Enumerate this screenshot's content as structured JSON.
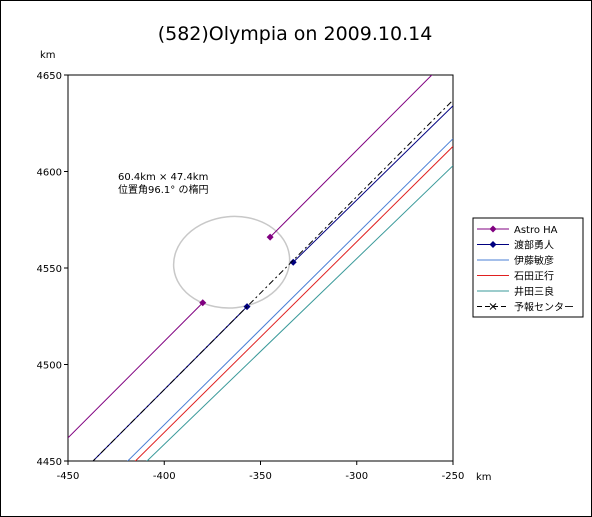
{
  "chart_data": {
    "type": "line",
    "title": "(582)Olympia on 2009.10.14",
    "xlabel": "km",
    "ylabel": "km",
    "xlim": [
      -450,
      -250
    ],
    "ylim": [
      4450,
      4650
    ],
    "x_ticks": [
      "-450",
      "-400",
      "-350",
      "-300",
      "-250"
    ],
    "y_ticks": [
      "4450",
      "4500",
      "4550",
      "4600",
      "4650"
    ],
    "grid": false,
    "legend_position": "right",
    "annotation": {
      "lines": [
        "60.4km × 47.4km",
        "位置角96.1° の楕円"
      ]
    },
    "ellipse": {
      "center": [
        -365,
        4553
      ],
      "major_axis_km": 60.4,
      "minor_axis_km": 47.4,
      "position_angle_deg": 96.1,
      "color": "#c8c8c8"
    },
    "series": [
      {
        "name": "Astro HA",
        "color": "#800080",
        "marker": "diamond",
        "segments": [
          [
            [
              -452,
              4460
            ],
            [
              -380,
              4532
            ]
          ],
          [
            [
              -345,
              4566
            ],
            [
              -258,
              4653
            ]
          ]
        ],
        "points": [
          [
            -380,
            4532
          ],
          [
            -345,
            4566
          ]
        ]
      },
      {
        "name": "渡部勇人",
        "color": "#000080",
        "marker": "diamond",
        "segments": [
          [
            [
              -438,
              4449
            ],
            [
              -357,
              4530
            ]
          ],
          [
            [
              -333,
              4553
            ],
            [
              -248,
              4636
            ]
          ]
        ],
        "points": [
          [
            -357,
            4530
          ],
          [
            -333,
            4553
          ]
        ]
      },
      {
        "name": "伊藤敏彦",
        "color": "#4a7fd6",
        "marker": "none",
        "segments": [
          [
            [
              -420,
              4449
            ],
            [
              -250,
              4617
            ]
          ]
        ],
        "points": []
      },
      {
        "name": "石田正行",
        "color": "#e02020",
        "marker": "none",
        "segments": [
          [
            [
              -416,
              4449
            ],
            [
              -250,
              4613
            ]
          ]
        ],
        "points": []
      },
      {
        "name": "井田三良",
        "color": "#3a9a9a",
        "marker": "none",
        "segments": [
          [
            [
              -410,
              4449
            ],
            [
              -250,
              4603
            ]
          ]
        ],
        "points": []
      },
      {
        "name": "予報センター",
        "color": "#000000",
        "marker": "x",
        "dashed": true,
        "segments": [
          [
            [
              -438,
              4449
            ],
            [
              -250,
              4637
            ]
          ]
        ],
        "points": []
      }
    ]
  }
}
